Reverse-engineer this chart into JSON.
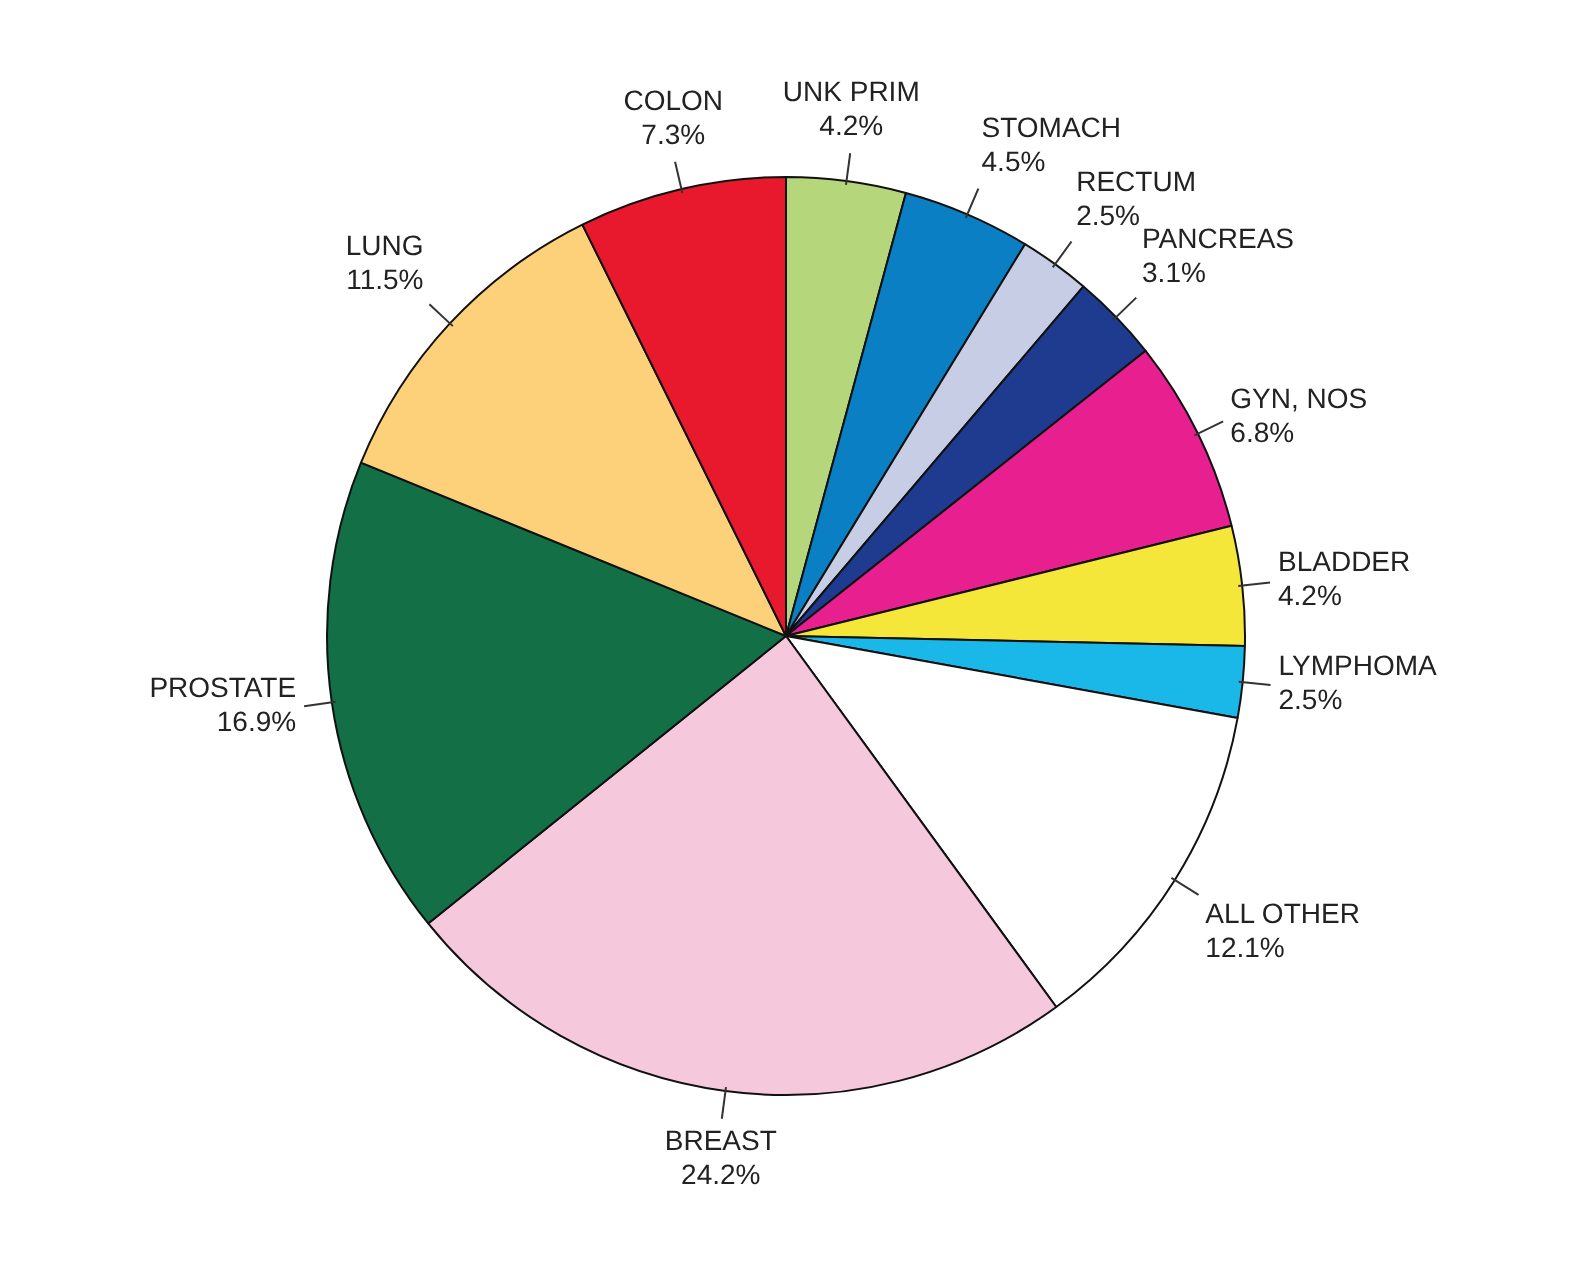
{
  "chart_data": {
    "type": "pie",
    "categories": [
      "UNK PRIM",
      "STOMACH",
      "RECTUM",
      "PANCREAS",
      "GYN, NOS",
      "BLADDER",
      "LYMPHOMA",
      "ALL OTHER",
      "BREAST",
      "PROSTATE",
      "LUNG",
      "COLON"
    ],
    "values": [
      4.2,
      4.5,
      2.5,
      3.1,
      6.8,
      4.2,
      2.5,
      12.1,
      24.2,
      16.9,
      11.5,
      7.3
    ],
    "value_labels": [
      "4.2%",
      "4.5%",
      "2.5%",
      "3.1%",
      "6.8%",
      "4.2%",
      "2.5%",
      "12.1%",
      "24.2%",
      "16.9%",
      "11.5%",
      "7.3%"
    ],
    "colors": [
      "#b5d67a",
      "#0a7fc4",
      "#c8cde6",
      "#1f3b8f",
      "#e8208f",
      "#f5e63a",
      "#1ab8e8",
      "#ffffff",
      "#f5c8dc",
      "#137046",
      "#fdd17a",
      "#e8192c"
    ],
    "legend": false
  }
}
